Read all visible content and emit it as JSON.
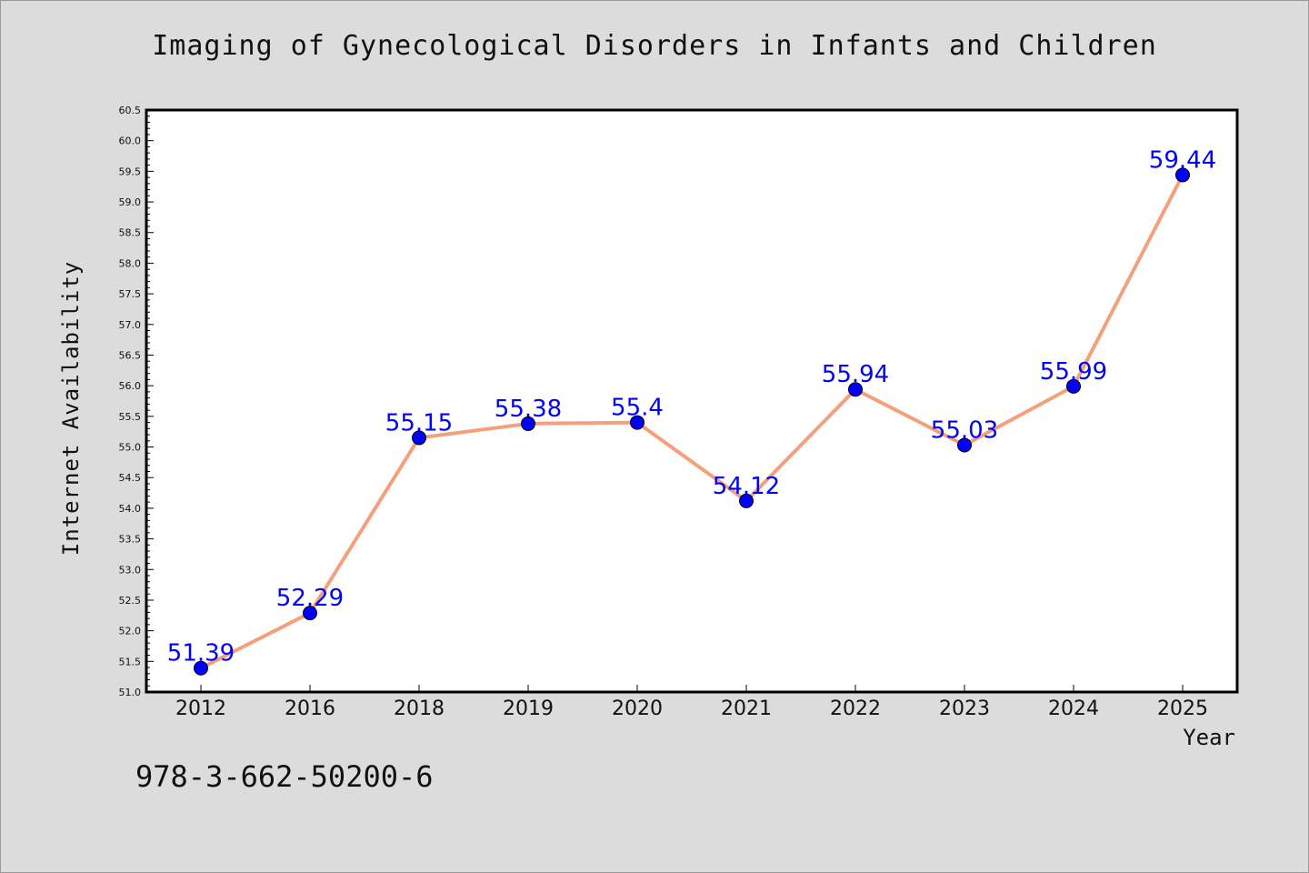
{
  "chart_data": {
    "type": "line",
    "title": "Imaging of Gynecological Disorders in Infants and Children",
    "xlabel": "Year",
    "ylabel": "Internet Availability",
    "categories": [
      "2012",
      "2016",
      "2018",
      "2019",
      "2020",
      "2021",
      "2022",
      "2023",
      "2024",
      "2025"
    ],
    "values": [
      51.39,
      52.29,
      55.15,
      55.38,
      55.4,
      54.12,
      55.94,
      55.03,
      55.99,
      59.44
    ],
    "data_labels": [
      "51.39",
      "52.29",
      "55.15",
      "55.38",
      "55.4",
      "54.12",
      "55.94",
      "55.03",
      "55.99",
      "59.44"
    ],
    "ylim": [
      51.0,
      60.5
    ],
    "yticks": [
      "51.0",
      "51.5",
      "52.0",
      "52.5",
      "53.0",
      "53.5",
      "54.0",
      "54.5",
      "55.0",
      "55.5",
      "56.0",
      "56.5",
      "57.0",
      "57.5",
      "58.0",
      "58.5",
      "59.0",
      "59.5",
      "60.0",
      "60.5"
    ],
    "grid": false,
    "legend": "none",
    "colors": {
      "line": "#f4a07c",
      "marker": "#0000ff",
      "label": "#0000ff",
      "plot_bg": "#ffffff",
      "page_bg": "#dcdcdc"
    }
  },
  "footnote": "978-3-662-50200-6"
}
